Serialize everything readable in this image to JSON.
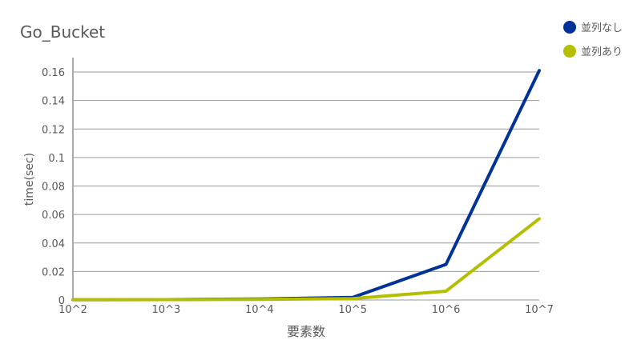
{
  "chart_data": {
    "type": "line",
    "title": "Go_Bucket",
    "xlabel": "要素数",
    "ylabel": "time(sec)",
    "categories": [
      "10^2",
      "10^3",
      "10^4",
      "10^5",
      "10^6",
      "10^7"
    ],
    "yticks": [
      "0",
      "0.02",
      "0.04",
      "0.06",
      "0.08",
      "0.1",
      "0.12",
      "0.14",
      "0.16"
    ],
    "ylim": [
      0,
      0.16
    ],
    "grid": true,
    "legend_position": "top-right",
    "series": [
      {
        "name": "並列なし",
        "color": "#003399",
        "values": [
          0.0002,
          0.0003,
          0.0007,
          0.0018,
          0.025,
          0.161
        ]
      },
      {
        "name": "並列あり",
        "color": "#b3bf00",
        "values": [
          0.0003,
          0.0003,
          0.0004,
          0.001,
          0.0062,
          0.057
        ]
      }
    ]
  }
}
